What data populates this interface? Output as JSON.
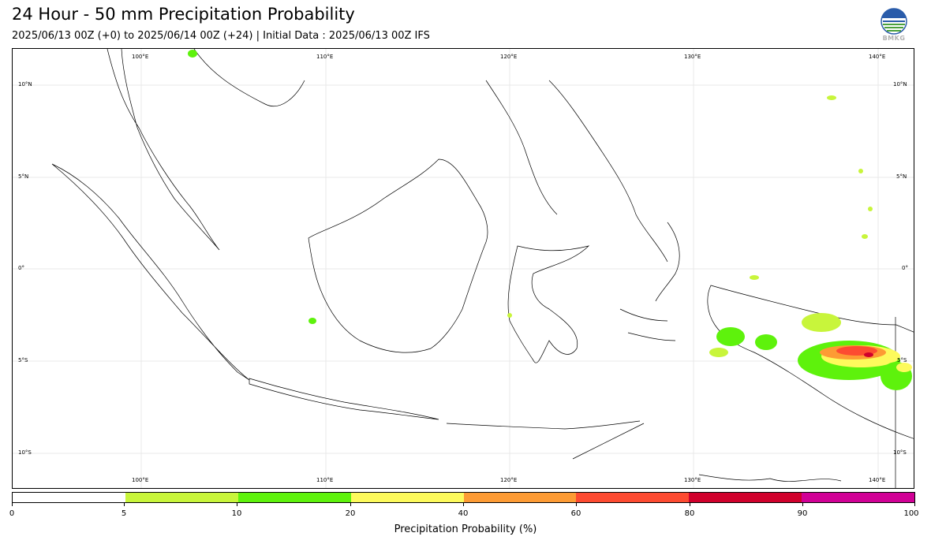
{
  "header": {
    "title": "24 Hour - 50 mm Precipitation Probability",
    "subtitle": "2025/06/13 00Z (+0) to 2025/06/14 00Z (+24) | Initial Data : 2025/06/13 00Z IFS",
    "logo_text": "BMKG"
  },
  "map": {
    "lon_top_labels": [
      "100°E",
      "110°E",
      "120°E",
      "130°E",
      "140°E"
    ],
    "lon_bottom_labels": [
      "100°E",
      "110°E",
      "120°E",
      "130°E",
      "140°E"
    ],
    "lat_left_labels": [
      "10°N",
      "5°N",
      "0°",
      "5°S",
      "10°S"
    ],
    "lat_right_labels": [
      "10°N",
      "5°N",
      "0°",
      "5°S",
      "10°S"
    ]
  },
  "colorbar": {
    "title": "Precipitation Probability (%)",
    "ticks": [
      "0",
      "5",
      "10",
      "20",
      "40",
      "60",
      "80",
      "90",
      "100"
    ],
    "colors": [
      "#ffffff",
      "#c8f53b",
      "#5ef20c",
      "#fdfa5c",
      "#fd9b34",
      "#fd4b31",
      "#d0002c",
      "#d10096"
    ]
  }
}
